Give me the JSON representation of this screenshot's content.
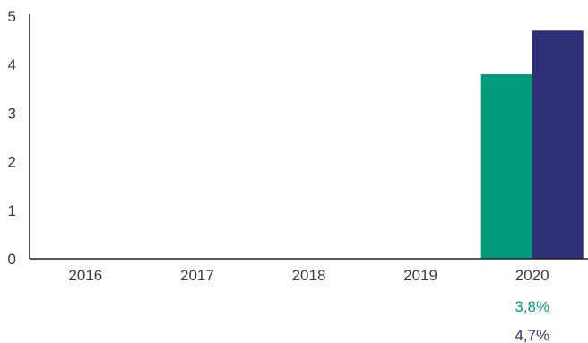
{
  "chart_data": {
    "type": "bar",
    "categories": [
      "2016",
      "2017",
      "2018",
      "2019",
      "2020"
    ],
    "series": [
      {
        "values": [
          null,
          null,
          null,
          null,
          3.8
        ],
        "color": "#009a7d"
      },
      {
        "values": [
          null,
          null,
          null,
          null,
          4.7
        ],
        "color": "#2e2f76"
      }
    ],
    "data_labels": [
      "3,8%",
      "4,7%"
    ],
    "y_ticks": [
      "0",
      "1",
      "2",
      "3",
      "4",
      "5"
    ],
    "ylim": [
      0,
      5
    ],
    "title": "",
    "xlabel": "",
    "ylabel": "",
    "grid": false,
    "axis_color": "#222222"
  }
}
